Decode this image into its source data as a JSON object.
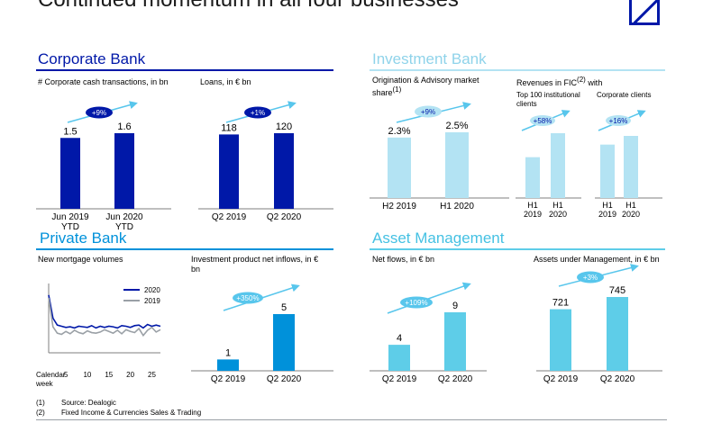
{
  "header": {
    "title": "Continued momentum in all four businesses"
  },
  "corporate_bank": {
    "title": "Corporate Bank",
    "chart1_label": "# Corporate cash transactions, in bn",
    "chart2_label": "Loans, in € bn"
  },
  "investment_bank": {
    "title": "Investment Bank",
    "chart1_label": "Origination & Advisory market share",
    "chart1_sup": "(1)",
    "fic_label": "Revenues in FIC",
    "fic_sup": "(2)",
    "fic_label_end": " with",
    "sub1_label": "Top 100 institutional clients",
    "sub2_label": "Corporate clients"
  },
  "private_bank": {
    "title": "Private Bank",
    "chart1_label": "New mortgage volumes",
    "chart2_label": "Investment product net inflows, in € bn"
  },
  "asset_management": {
    "title": "Asset Management",
    "chart1_label": "Net flows, in € bn",
    "chart2_label": "Assets under Management, in € bn"
  },
  "footnotes": [
    {
      "num": "(1)",
      "text": "Source: Dealogic"
    },
    {
      "num": "(2)",
      "text": "Fixed Income & Currencies Sales & Trading"
    }
  ],
  "colors": {
    "dark_blue": "#0018a8",
    "light_cyan": "#b3e3f3",
    "mid_cyan": "#5ecde8",
    "bright_blue": "#0091da",
    "badge_dark": "#0018a8",
    "badge_light": "#58c6ec"
  },
  "chart_data": [
    {
      "id": "cb_cash",
      "type": "bar",
      "categories": [
        "Jun 2019\nYTD",
        "Jun 2020\nYTD"
      ],
      "values": [
        1.5,
        1.6
      ],
      "labels": [
        "1.5",
        "1.6"
      ],
      "growth": "+9%",
      "color": "#0018a8"
    },
    {
      "id": "cb_loans",
      "type": "bar",
      "categories": [
        "Q2 2019",
        "Q2 2020"
      ],
      "values": [
        118,
        120
      ],
      "labels": [
        "118",
        "120"
      ],
      "growth": "+1%",
      "color": "#0018a8"
    },
    {
      "id": "ib_share",
      "type": "bar",
      "categories": [
        "H2 2019",
        "H1 2020"
      ],
      "values": [
        2.3,
        2.5
      ],
      "labels": [
        "2.3%",
        "2.5%"
      ],
      "growth": "+9%",
      "color": "#b3e3f3"
    },
    {
      "id": "ib_fic_top100",
      "type": "bar",
      "categories": [
        "H1\n2019",
        "H1\n2020"
      ],
      "values": [
        0.63,
        1.0
      ],
      "labels": [
        "",
        ""
      ],
      "growth": "+58%",
      "color": "#b3e3f3"
    },
    {
      "id": "ib_fic_corp",
      "type": "bar",
      "categories": [
        "H1\n2019",
        "H1\n2020"
      ],
      "values": [
        0.86,
        1.0
      ],
      "labels": [
        "",
        ""
      ],
      "growth": "+16%",
      "color": "#b3e3f3"
    },
    {
      "id": "pb_mortgage",
      "type": "line",
      "x": [
        1,
        2,
        3,
        4,
        5,
        6,
        7,
        8,
        9,
        10,
        11,
        12,
        13,
        14,
        15,
        16,
        17,
        18,
        19,
        20,
        21,
        22,
        23,
        24,
        25,
        26,
        27
      ],
      "x_ticks": [
        "5",
        "10",
        "15",
        "20",
        "25"
      ],
      "x_tick_values": [
        5,
        10,
        15,
        20,
        25
      ],
      "x_label": "Calendar\nweek",
      "series": [
        {
          "name": "2020",
          "color": "#0018a8",
          "values": [
            100,
            60,
            48,
            46,
            44,
            45,
            43,
            46,
            45,
            44,
            47,
            43,
            46,
            44,
            46,
            45,
            43,
            47,
            46,
            44,
            47,
            48,
            43,
            49,
            46,
            48,
            46
          ]
        },
        {
          "name": "2019",
          "color": "#9aa0a6",
          "values": [
            95,
            45,
            34,
            32,
            37,
            33,
            39,
            35,
            33,
            38,
            35,
            34,
            36,
            40,
            37,
            34,
            39,
            33,
            40,
            37,
            35,
            42,
            30,
            39,
            44,
            36,
            40
          ]
        }
      ],
      "ylim": [
        0,
        120
      ]
    },
    {
      "id": "pb_inflows",
      "type": "bar",
      "categories": [
        "Q2 2019",
        "Q2 2020"
      ],
      "values": [
        1,
        5
      ],
      "labels": [
        "1",
        "5"
      ],
      "growth": "+350%",
      "color": "#0091da"
    },
    {
      "id": "am_flows",
      "type": "bar",
      "categories": [
        "Q2 2019",
        "Q2 2020"
      ],
      "values": [
        4,
        9
      ],
      "labels": [
        "4",
        "9"
      ],
      "growth": "+109%",
      "color": "#5ecde8"
    },
    {
      "id": "am_aum",
      "type": "bar",
      "categories": [
        "Q2 2019",
        "Q2 2020"
      ],
      "values": [
        721,
        745
      ],
      "labels": [
        "721",
        "745"
      ],
      "growth": "+3%",
      "color": "#5ecde8"
    }
  ]
}
